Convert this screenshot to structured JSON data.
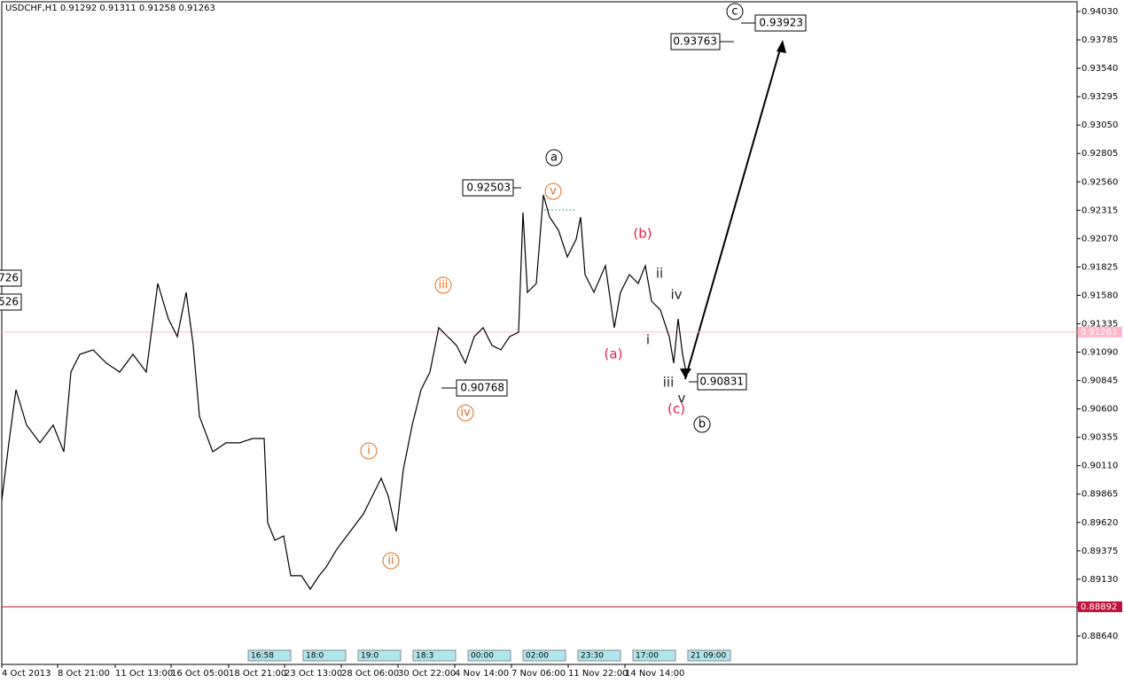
{
  "chart_data": {
    "type": "line",
    "title": "USDCHF,H1  0.91292 0.91311 0.91258 0.91263",
    "series": [
      {
        "color": "#000000",
        "x": [
          0,
          8,
          16,
          28,
          43,
          58,
          70,
          78,
          88,
          103,
          118,
          133,
          148,
          163,
          176,
          188,
          198,
          208,
          216,
          223,
          238,
          253,
          268,
          283,
          296,
          300,
          308,
          318,
          326,
          338,
          348,
          358,
          366,
          378,
          393,
          408,
          418,
          428,
          436,
          445,
          453,
          463,
          473,
          483,
          493,
          503,
          513,
          523,
          533,
          543,
          553,
          563,
          573,
          583,
          588,
          593,
          603,
          611,
          618,
          628,
          638,
          648,
          653,
          658,
          668,
          681,
          691,
          698,
          708,
          718,
          726,
          733,
          743,
          753,
          758,
          763,
          768,
          773
        ],
        "values": [
          0.8981,
          0.90307,
          0.90765,
          0.9046,
          0.90307,
          0.9046,
          0.9023,
          0.90918,
          0.91071,
          0.9111,
          0.90995,
          0.90918,
          0.91071,
          0.90918,
          0.91683,
          0.91377,
          0.91224,
          0.91606,
          0.91148,
          0.90536,
          0.9023,
          0.90307,
          0.90307,
          0.90345,
          0.90345,
          0.89619,
          0.89466,
          0.89504,
          0.8916,
          0.8916,
          0.89045,
          0.8916,
          0.89236,
          0.89389,
          0.89542,
          0.89695,
          0.89848,
          0.90001,
          0.89848,
          0.89542,
          0.90077,
          0.9046,
          0.90765,
          0.90918,
          0.91301,
          0.91224,
          0.91148,
          0.90995,
          0.91224,
          0.91301,
          0.91148,
          0.9111,
          0.91224,
          0.91262,
          0.92295,
          0.91606,
          0.91683,
          0.92447,
          0.92256,
          0.92142,
          0.91912,
          0.92065,
          0.92256,
          0.91759,
          0.91606,
          0.91836,
          0.91301,
          0.91606,
          0.91759,
          0.91683,
          0.91836,
          0.9153,
          0.91454,
          0.91224,
          0.90995,
          0.91377,
          0.91071,
          0.9088
        ]
      }
    ],
    "xlim": [
      0,
      1213
    ],
    "ylim": [
      0.88395,
      0.94114
    ],
    "xticks": [
      {
        "value": 0,
        "label": "4 Oct 2013"
      },
      {
        "value": 63,
        "label": "8 Oct 21:00"
      },
      {
        "value": 128,
        "label": "11 Oct 13:00"
      },
      {
        "value": 191,
        "label": "16 Oct 05:00"
      },
      {
        "value": 256,
        "label": "18 Oct 21:00"
      },
      {
        "value": 319,
        "label": "23 Oct 13:00"
      },
      {
        "value": 383,
        "label": "28 Oct 06:00"
      },
      {
        "value": 447,
        "label": "30 Oct 22:00"
      },
      {
        "value": 511,
        "label": "4 Nov 14:00"
      },
      {
        "value": 575,
        "label": "7 Nov 06:00"
      },
      {
        "value": 639,
        "label": "11 Nov 22:00"
      },
      {
        "value": 703,
        "label": "14 Nov 14:00"
      }
    ],
    "yticks": [
      {
        "value": 0.9403,
        "label": "0.94030"
      },
      {
        "value": 0.93785,
        "label": "0.93785"
      },
      {
        "value": 0.9354,
        "label": "0.93540"
      },
      {
        "value": 0.93295,
        "label": "0.93295"
      },
      {
        "value": 0.9305,
        "label": "0.93050"
      },
      {
        "value": 0.92805,
        "label": "0.92805"
      },
      {
        "value": 0.9256,
        "label": "0.92560"
      },
      {
        "value": 0.92315,
        "label": "0.92315"
      },
      {
        "value": 0.9207,
        "label": "0.92070"
      },
      {
        "value": 0.91825,
        "label": "0.91825"
      },
      {
        "value": 0.9158,
        "label": "0.91580"
      },
      {
        "value": 0.91335,
        "label": "0.91335"
      },
      {
        "value": 0.9109,
        "label": "0.91090"
      },
      {
        "value": 0.90845,
        "label": "0.90845"
      },
      {
        "value": 0.906,
        "label": "0.90600"
      },
      {
        "value": 0.90355,
        "label": "0.90355"
      },
      {
        "value": 0.9011,
        "label": "0.90110"
      },
      {
        "value": 0.89865,
        "label": "0.89865"
      },
      {
        "value": 0.8962,
        "label": "0.89620"
      },
      {
        "value": 0.89375,
        "label": "0.89375"
      },
      {
        "value": 0.8913,
        "label": "0.89130"
      },
      {
        "value": 0.88885,
        "label": "0.88885"
      },
      {
        "value": 0.8864,
        "label": "0.88640"
      }
    ],
    "current_price": {
      "value": 0.91263,
      "label": "0.91263",
      "color": "#ffb6c8"
    },
    "level_line": {
      "value": 0.88892,
      "label": "0.88892",
      "color": "#c0143c"
    },
    "price_boxes": [
      "0.92503",
      "0.90768",
      "0.90831",
      "0.93763",
      "0.93923",
      "726",
      "526"
    ],
    "waves": [
      {
        "text": "a",
        "color": "#000000",
        "circled": true
      },
      {
        "text": "b",
        "color": "#000000",
        "circled": true
      },
      {
        "text": "c",
        "color": "#000000",
        "circled": true
      },
      {
        "text": "v",
        "color": "#e07020",
        "circled": true
      },
      {
        "text": "iii",
        "color": "#e07020",
        "circled": true
      },
      {
        "text": "iv",
        "color": "#e07020",
        "circled": true
      },
      {
        "text": "i",
        "color": "#e07020",
        "circled": true
      },
      {
        "text": "ii",
        "color": "#e07020",
        "circled": true
      },
      {
        "text": "(b)",
        "color": "#e0204c",
        "circled": false
      },
      {
        "text": "(a)",
        "color": "#e0204c",
        "circled": false
      },
      {
        "text": "(c)",
        "color": "#e0204c",
        "circled": false
      },
      {
        "text": "ii",
        "color": "#202020",
        "circled": false
      },
      {
        "text": "iv",
        "color": "#202020",
        "circled": false
      },
      {
        "text": "i",
        "color": "#202020",
        "circled": false
      },
      {
        "text": "iii",
        "color": "#202020",
        "circled": false
      },
      {
        "text": "v",
        "color": "#202020",
        "circled": false
      }
    ],
    "time_labels": [
      "16:58",
      "18:0",
      "19:0",
      "18:3",
      "00:00",
      "02:00",
      "23:30",
      "17:00",
      "21 09:00"
    ]
  }
}
